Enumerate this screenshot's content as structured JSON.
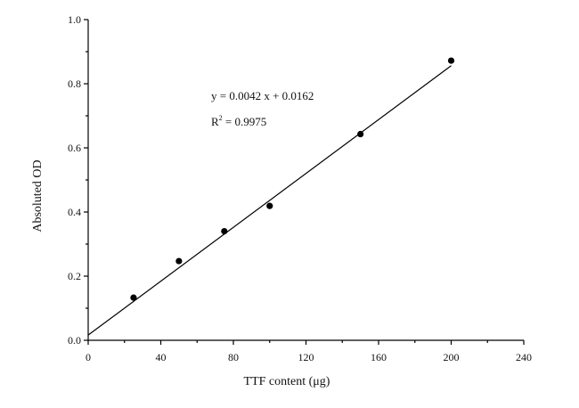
{
  "chart_data": {
    "type": "scatter",
    "xlabel": "TTF content (μg)",
    "ylabel": "Absoluted OD",
    "xlim": [
      0,
      240
    ],
    "ylim": [
      0,
      1.0
    ],
    "x_ticks": [
      0,
      40,
      80,
      120,
      160,
      200,
      240
    ],
    "x_tick_labels": [
      "0",
      "40",
      "80",
      "120",
      "160",
      "200",
      "240"
    ],
    "y_ticks": [
      0,
      0.2,
      0.4,
      0.6,
      0.8,
      1.0
    ],
    "y_tick_labels": [
      "0.0",
      "0.2",
      "0.4",
      "0.6",
      "0.8",
      "1.0"
    ],
    "grid": false,
    "series": [
      {
        "x": [
          25,
          50,
          75,
          100,
          150,
          200
        ],
        "y": [
          0.133,
          0.247,
          0.34,
          0.419,
          0.643,
          0.872
        ]
      }
    ],
    "fit": {
      "slope": 0.0042,
      "intercept": 0.0162,
      "x_range": [
        0,
        200
      ]
    },
    "annotations": {
      "equation": "y = 0.0042 x + 0.0162",
      "r2_prefix": "R",
      "r2_sup": "2",
      "r2_value": " = 0.9975"
    }
  }
}
